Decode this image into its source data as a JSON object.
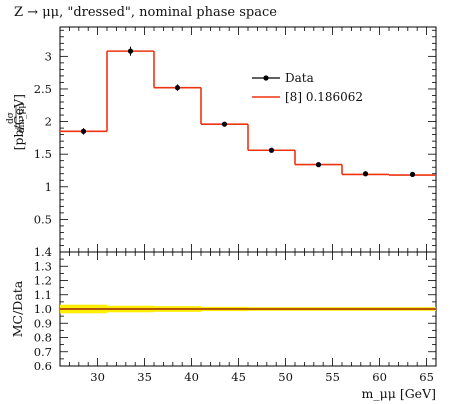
{
  "chart_data": {
    "type": "line",
    "title": "Z → μμ, \"dressed\", nominal phase space",
    "ylabel_upper_frac_num": "dσ",
    "ylabel_upper_frac_den": "dm_μμ",
    "ylabel_upper_unit": "[pb/GeV]",
    "ylabel_lower": "MC/Data",
    "xlabel": "m_μμ [GeV]",
    "xlim": [
      26,
      66
    ],
    "ylim_upper": [
      0,
      3.45
    ],
    "ylim_lower": [
      0.6,
      1.4
    ],
    "x_ticks": [
      "30",
      "35",
      "40",
      "45",
      "50",
      "55",
      "60",
      "65"
    ],
    "y_ticks_upper": [
      "0.5",
      "1",
      "1.5",
      "2",
      "2.5",
      "3"
    ],
    "y_ticks_lower": [
      "0.6",
      "0.7",
      "0.8",
      "0.9",
      "1.0",
      "1.1",
      "1.2",
      "1.3",
      "1.4"
    ],
    "bin_edges": [
      26,
      31,
      36,
      41,
      46,
      51,
      56,
      61,
      66
    ],
    "series": [
      {
        "name": "Data",
        "kind": "points",
        "color": "#000000",
        "x": [
          28.5,
          33.5,
          38.5,
          43.5,
          48.5,
          53.5,
          58.5,
          63.5
        ],
        "y": [
          1.85,
          3.08,
          2.52,
          1.96,
          1.56,
          1.34,
          1.2,
          1.19
        ],
        "err": [
          0.05,
          0.07,
          0.05,
          0.03,
          0.02,
          0.02,
          0.02,
          0.02
        ]
      },
      {
        "name": "[8] 0.186062",
        "kind": "step",
        "color": "#ee3311",
        "values": [
          1.85,
          3.08,
          2.52,
          1.96,
          1.56,
          1.34,
          1.19,
          1.18
        ]
      }
    ],
    "ratio": {
      "values": [
        1.0,
        1.0,
        1.0,
        1.0,
        1.0,
        1.0,
        1.0,
        1.0
      ],
      "band": [
        0.03,
        0.023,
        0.02,
        0.015,
        0.013,
        0.013,
        0.013,
        0.013
      ],
      "band_color": "#ffee00",
      "line_color": "#ee3311"
    },
    "legend_position": "top-right",
    "grid": false
  }
}
